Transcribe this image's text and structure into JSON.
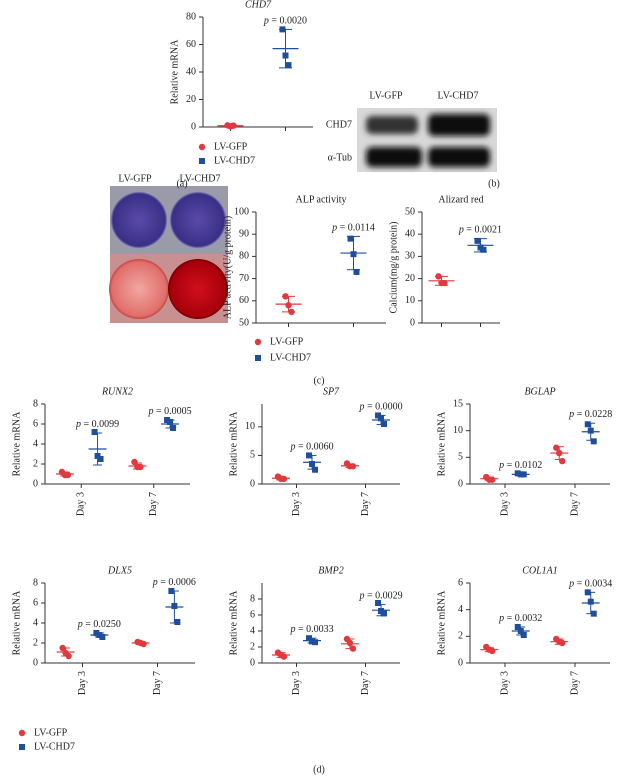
{
  "chart_data": [
    {
      "type": "dotplot",
      "title": "CHD7",
      "title_italic": true,
      "y_label": "Relative mRNA",
      "ylim": [
        0,
        80
      ],
      "yticks": [
        0,
        20,
        40,
        60,
        80
      ],
      "series": [
        {
          "name": "LV-GFP",
          "color": "#e0393e",
          "marker": "circle",
          "values": [
            1.2,
            0.5,
            1
          ],
          "mean": 0.9,
          "sd": 0.3
        },
        {
          "name": "LV-CHD7",
          "color": "#1f4e9c",
          "marker": "square",
          "values": [
            71,
            52,
            45
          ],
          "mean": 57,
          "sd": 14
        }
      ],
      "annotations": [
        "p = 0.0020"
      ]
    },
    {
      "type": "dotplot",
      "title": "ALP activity",
      "title_italic": false,
      "y_label": "ALP activity(U/g protein)",
      "ylim": [
        50,
        100
      ],
      "yticks": [
        50,
        60,
        70,
        80,
        90,
        100
      ],
      "series": [
        {
          "name": "LV-GFP",
          "color": "#e0393e",
          "marker": "circle",
          "values": [
            62,
            58,
            55
          ],
          "mean": 58.5,
          "sd": 3.5
        },
        {
          "name": "LV-CHD7",
          "color": "#1f4e9c",
          "marker": "square",
          "values": [
            88,
            81,
            73
          ],
          "mean": 81.5,
          "sd": 7.5
        }
      ],
      "annotations": [
        "p = 0.0114"
      ]
    },
    {
      "type": "dotplot",
      "title": "Alizard red",
      "title_italic": false,
      "y_label": "Calcium(mg/g protein)",
      "ylim": [
        0,
        50
      ],
      "yticks": [
        0,
        10,
        20,
        30,
        40,
        50
      ],
      "series": [
        {
          "name": "LV-GFP",
          "color": "#e0393e",
          "marker": "circle",
          "values": [
            21,
            18,
            18
          ],
          "mean": 19,
          "sd": 2
        },
        {
          "name": "LV-CHD7",
          "color": "#1f4e9c",
          "marker": "square",
          "values": [
            37,
            34,
            33
          ],
          "mean": 35,
          "sd": 3
        }
      ],
      "annotations": [
        "p = 0.0021"
      ]
    },
    {
      "type": "dotplot",
      "title": "RUNX2",
      "title_italic": true,
      "y_label": "Relative mRNA",
      "categories": [
        "Day 3",
        "Day 7"
      ],
      "ylim": [
        0,
        8
      ],
      "yticks": [
        0,
        2,
        4,
        6,
        8
      ],
      "series": [
        {
          "name": "LV-GFP",
          "color": "#e0393e",
          "marker": "circle",
          "values": [
            [
              1.2,
              0.9,
              0.9
            ],
            [
              2.2,
              1.7,
              1.7
            ]
          ],
          "mean": [
            1,
            1.8
          ],
          "sd": [
            0.2,
            0.3
          ]
        },
        {
          "name": "LV-CHD7",
          "color": "#1f4e9c",
          "marker": "square",
          "values": [
            [
              5.2,
              2.8,
              2.5
            ],
            [
              6.4,
              6.2,
              5.6
            ]
          ],
          "mean": [
            3.5,
            6
          ],
          "sd": [
            1.6,
            0.4
          ]
        }
      ],
      "annotations": [
        "p = 0.0099",
        "p = 0.0005"
      ]
    },
    {
      "type": "dotplot",
      "title": "SP7",
      "title_italic": true,
      "y_label": "Relative mRNA",
      "categories": [
        "Day 3",
        "Day 7"
      ],
      "ylim": [
        0,
        14
      ],
      "yticks": [
        0,
        5,
        10
      ],
      "series": [
        {
          "name": "LV-GFP",
          "color": "#e0393e",
          "marker": "circle",
          "values": [
            [
              1.3,
              0.9,
              0.9
            ],
            [
              3.6,
              3.1,
              3.1
            ]
          ],
          "mean": [
            1,
            3.2
          ],
          "sd": [
            0.3,
            0.3
          ]
        },
        {
          "name": "LV-CHD7",
          "color": "#1f4e9c",
          "marker": "square",
          "values": [
            [
              5,
              3.5,
              2.5
            ],
            [
              12,
              11.5,
              10.5
            ]
          ],
          "mean": [
            3.8,
            11.2
          ],
          "sd": [
            1.2,
            0.8
          ]
        }
      ],
      "annotations": [
        "p = 0.0060",
        "p = 0.0000"
      ]
    },
    {
      "type": "dotplot",
      "title": "BGLAP",
      "title_italic": true,
      "y_label": "Relative mRNA",
      "categories": [
        "Day 3",
        "Day 7"
      ],
      "ylim": [
        0,
        15
      ],
      "yticks": [
        0,
        5,
        10,
        15
      ],
      "series": [
        {
          "name": "LV-GFP",
          "color": "#e0393e",
          "marker": "circle",
          "values": [
            [
              1.3,
              0.8,
              0.8
            ],
            [
              6.8,
              5.8,
              4.3
            ]
          ],
          "mean": [
            1,
            5.8
          ],
          "sd": [
            0.3,
            1.2
          ]
        },
        {
          "name": "LV-CHD7",
          "color": "#1f4e9c",
          "marker": "square",
          "values": [
            [
              2,
              1.8,
              1.8
            ],
            [
              11.2,
              10,
              8
            ]
          ],
          "mean": [
            1.8,
            9.8
          ],
          "sd": [
            0.1,
            1.6
          ]
        }
      ],
      "annotations": [
        "p = 0.0102",
        "p = 0.0228"
      ]
    },
    {
      "type": "dotplot",
      "title": "DLX5",
      "title_italic": true,
      "y_label": "Relative mRNA",
      "categories": [
        "Day 3",
        "Day 7"
      ],
      "ylim": [
        0,
        8
      ],
      "yticks": [
        0,
        2,
        4,
        6,
        8
      ],
      "series": [
        {
          "name": "LV-GFP",
          "color": "#e0393e",
          "marker": "circle",
          "values": [
            [
              1.5,
              1,
              0.7
            ],
            [
              2.1,
              2,
              1.9
            ]
          ],
          "mean": [
            1.1,
            2
          ],
          "sd": [
            0.4,
            0.1
          ]
        },
        {
          "name": "LV-CHD7",
          "color": "#1f4e9c",
          "marker": "square",
          "values": [
            [
              3,
              2.8,
              2.6
            ],
            [
              7.2,
              5.7,
              4.1
            ]
          ],
          "mean": [
            2.8,
            5.6
          ],
          "sd": [
            0.2,
            1.6
          ]
        }
      ],
      "annotations": [
        "p = 0.0250",
        "p = 0.0006"
      ]
    },
    {
      "type": "dotplot",
      "title": "BMP2",
      "title_italic": true,
      "y_label": "Relative mRNA",
      "categories": [
        "Day 3",
        "Day 7"
      ],
      "ylim": [
        0,
        10
      ],
      "yticks": [
        0,
        2,
        4,
        6,
        8
      ],
      "series": [
        {
          "name": "LV-GFP",
          "color": "#e0393e",
          "marker": "circle",
          "values": [
            [
              1.3,
              1,
              0.8
            ],
            [
              3,
              2.5,
              1.8
            ]
          ],
          "mean": [
            1,
            2.4
          ],
          "sd": [
            0.3,
            0.6
          ]
        },
        {
          "name": "LV-CHD7",
          "color": "#1f4e9c",
          "marker": "square",
          "values": [
            [
              3.1,
              2.7,
              2.6
            ],
            [
              7.5,
              6.5,
              6.2
            ]
          ],
          "mean": [
            2.8,
            6.6
          ],
          "sd": [
            0.3,
            0.7
          ]
        }
      ],
      "annotations": [
        "p = 0.0033",
        "p = 0.0029"
      ]
    },
    {
      "type": "dotplot",
      "title": "COL1A1",
      "title_italic": true,
      "y_label": "Relative mRNA",
      "categories": [
        "Day 3",
        "Day 7"
      ],
      "ylim": [
        0,
        6
      ],
      "yticks": [
        0,
        2,
        4,
        6
      ],
      "series": [
        {
          "name": "LV-GFP",
          "color": "#e0393e",
          "marker": "circle",
          "values": [
            [
              1.2,
              1,
              0.9
            ],
            [
              1.8,
              1.6,
              1.5
            ]
          ],
          "mean": [
            1,
            1.6
          ],
          "sd": [
            0.15,
            0.2
          ]
        },
        {
          "name": "LV-CHD7",
          "color": "#1f4e9c",
          "marker": "square",
          "values": [
            [
              2.7,
              2.4,
              2.1
            ],
            [
              5.3,
              4.6,
              3.7
            ]
          ],
          "mean": [
            2.4,
            4.5
          ],
          "sd": [
            0.3,
            0.8
          ]
        }
      ],
      "annotations": [
        "p = 0.0032",
        "p = 0.0034"
      ]
    }
  ],
  "blot": {
    "lanes": [
      "LV-GFP",
      "LV-CHD7"
    ],
    "rows": [
      "CHD7",
      "α-Tub"
    ]
  },
  "stain": {
    "lanes": [
      "LV-GFP",
      "LV-CHD7"
    ]
  },
  "panel_labels": [
    "(a)",
    "(b)",
    "(c)",
    "(d)"
  ]
}
